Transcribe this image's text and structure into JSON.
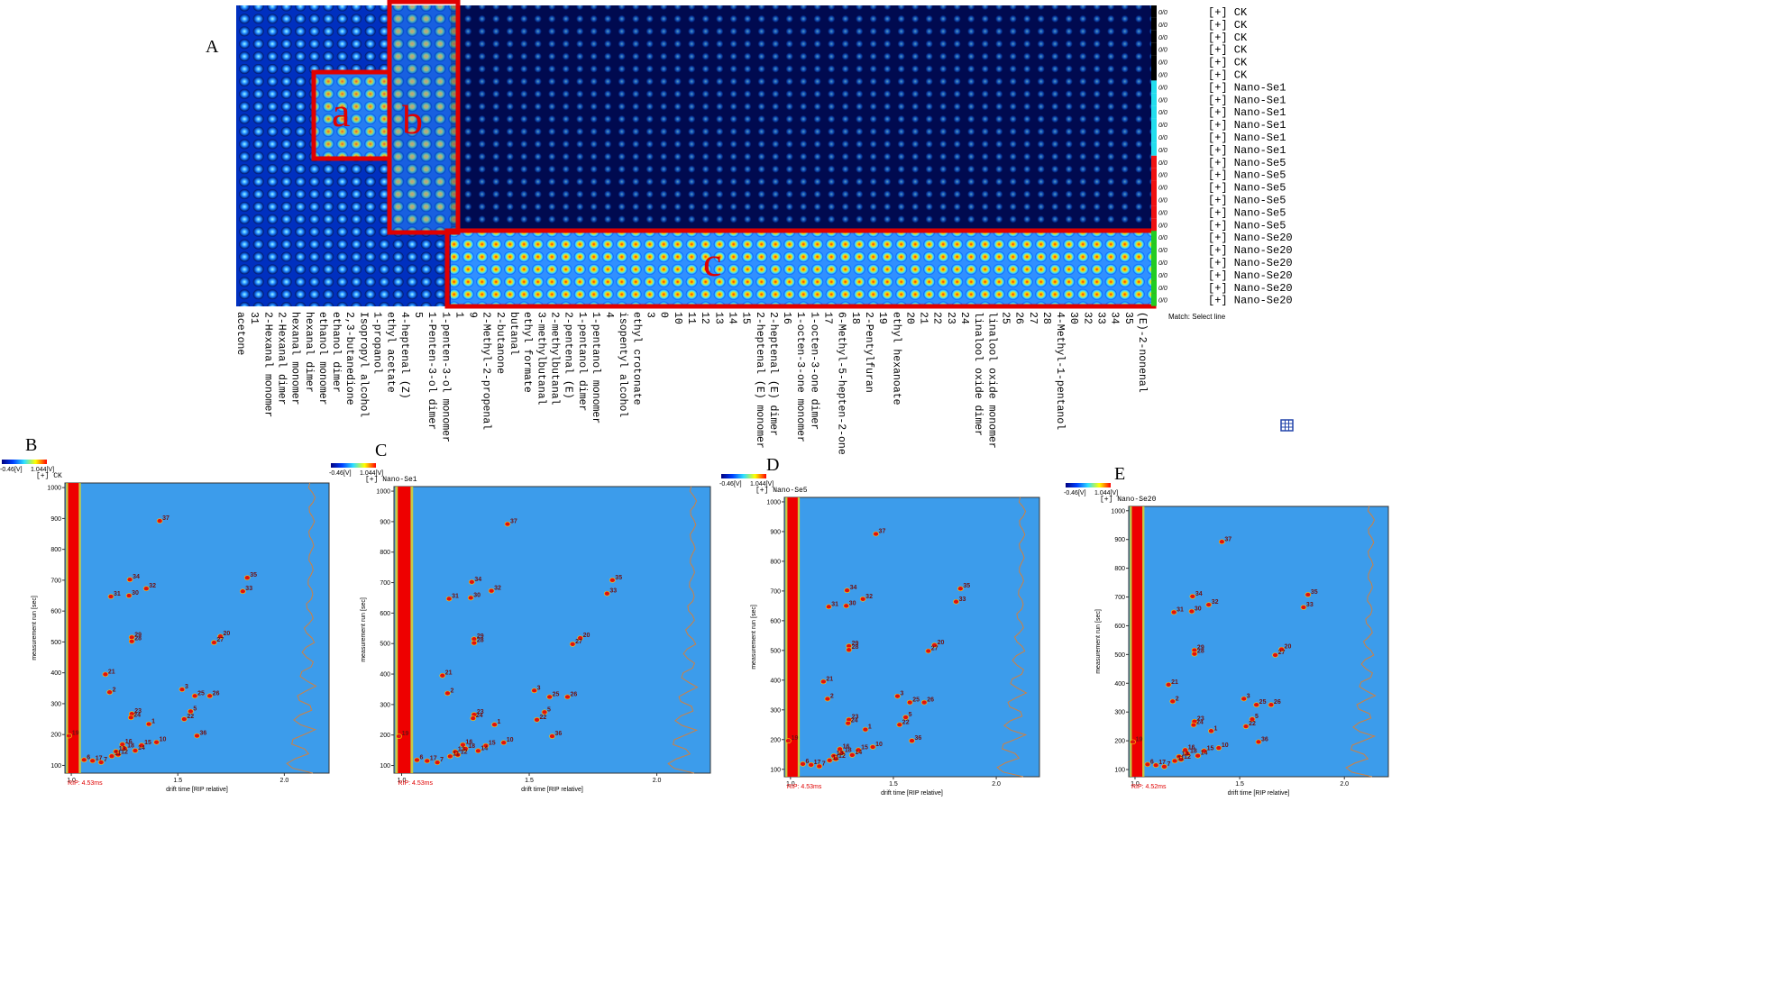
{
  "panel_A": {
    "label": "A",
    "region_labels": [
      "a",
      "b",
      "c"
    ],
    "compounds": [
      "acetone",
      "31",
      "2-Hexanal monomer",
      "2-Hexanal dimer",
      "hexanal monomer",
      "hexanal dimer",
      "ethanol monomer",
      "ethanol dimer",
      "2,3-butanedione",
      "Isopropyl alcohol",
      "1-propanol",
      "ethyl acetate",
      "4-heptenal (Z)",
      "5",
      "1-Penten-3-ol dimer",
      "1-penten-3-ol monomer",
      "1",
      "9",
      "2-Methyl-2-propenal",
      "2-butanone",
      "butanal",
      "ethyl formate",
      "3-methylbutanal",
      "2-methylbutanal",
      "2-pentenal (E)",
      "1-pentanol dimer",
      "1-pentanol monomer",
      "4",
      "isopentyl alcohol",
      "ethyl crotonate",
      "3",
      "0",
      "10",
      "11",
      "12",
      "13",
      "14",
      "15",
      "2-heptenal (E) monomer",
      "2-heptenal (E) dimer",
      "16",
      "1-octen-3-one monomer",
      "1-octen-3-one dimer",
      "17",
      "6-Methyl-5-hepten-2-one",
      "18",
      "2-Pentylfuran",
      "19",
      "ethyl hexanoate",
      "20",
      "21",
      "22",
      "23",
      "24",
      "linalool oxide dimer",
      "linalool oxide monomer",
      "25",
      "26",
      "27",
      "28",
      "4-Methyl-1-pentanol",
      "30",
      "32",
      "33",
      "34",
      "35",
      "(E)-2-nonenal"
    ],
    "sample_groups": [
      {
        "name": "[+] CK",
        "color": "#000000",
        "count": 6
      },
      {
        "name": "[+] Nano-Se1",
        "color": "#22ddee",
        "count": 6
      },
      {
        "name": "[+] Nano-Se5",
        "color": "#ee1111",
        "count": 6
      },
      {
        "name": "[+] Nano-Se20",
        "color": "#22cc22",
        "count": 6
      }
    ],
    "row_value_label": "0/0",
    "match_text": "Match: Select line"
  },
  "topo_axes": {
    "xlabel": "drift time [RIP relative]",
    "ylabel": "measurement run [sec]",
    "xlim": [
      0.97,
      2.21
    ],
    "ylim": [
      75,
      1015
    ],
    "xticks": [
      {
        "value": 1,
        "label": "1.0"
      },
      {
        "value": 1.5,
        "label": "1.5"
      },
      {
        "value": 2,
        "label": "2.0"
      }
    ],
    "yticks": [
      100,
      200,
      300,
      400,
      500,
      600,
      700,
      800,
      900,
      1000
    ],
    "colorbar_labels": [
      "-0.46[V]",
      "1.044[V]"
    ]
  },
  "plots": [
    {
      "label": "B",
      "sample": "[+] CK",
      "rip": "RIP: 4.53ms"
    },
    {
      "label": "C",
      "sample": "[+] Nano-Se1",
      "rip": "RIP: 4.53ms"
    },
    {
      "label": "D",
      "sample": "[+] Nano-Se5",
      "rip": "RIP: 4.53ms"
    },
    {
      "label": "E",
      "sample": "[+] Nano-Se20",
      "rip": "RIP: 4.52ms"
    }
  ],
  "peaks": [
    {
      "label": "37",
      "x": 1.415,
      "y": 892
    },
    {
      "label": "34",
      "x": 1.275,
      "y": 702
    },
    {
      "label": "35",
      "x": 1.826,
      "y": 708
    },
    {
      "label": "31",
      "x": 1.186,
      "y": 647
    },
    {
      "label": "30",
      "x": 1.271,
      "y": 650
    },
    {
      "label": "32",
      "x": 1.352,
      "y": 673
    },
    {
      "label": "33",
      "x": 1.805,
      "y": 664
    },
    {
      "label": "29",
      "x": 1.284,
      "y": 515
    },
    {
      "label": "28",
      "x": 1.284,
      "y": 502
    },
    {
      "label": "20",
      "x": 1.7,
      "y": 518
    },
    {
      "label": "27",
      "x": 1.67,
      "y": 498
    },
    {
      "label": "21",
      "x": 1.16,
      "y": 395
    },
    {
      "label": "2",
      "x": 1.18,
      "y": 337
    },
    {
      "label": "3",
      "x": 1.52,
      "y": 346
    },
    {
      "label": "25",
      "x": 1.58,
      "y": 325
    },
    {
      "label": "26",
      "x": 1.65,
      "y": 325
    },
    {
      "label": "23",
      "x": 1.284,
      "y": 267
    },
    {
      "label": "24",
      "x": 1.28,
      "y": 255
    },
    {
      "label": "1",
      "x": 1.364,
      "y": 234
    },
    {
      "label": "5",
      "x": 1.56,
      "y": 275
    },
    {
      "label": "22",
      "x": 1.53,
      "y": 250
    },
    {
      "label": "19",
      "x": 0.99,
      "y": 196
    },
    {
      "label": "36",
      "x": 1.59,
      "y": 196
    },
    {
      "label": "16",
      "x": 1.24,
      "y": 168
    },
    {
      "label": "15",
      "x": 1.33,
      "y": 165
    },
    {
      "label": "10",
      "x": 1.4,
      "y": 175
    },
    {
      "label": "18",
      "x": 1.25,
      "y": 155
    },
    {
      "label": "14",
      "x": 1.3,
      "y": 148
    },
    {
      "label": "13",
      "x": 1.21,
      "y": 145
    },
    {
      "label": "12",
      "x": 1.22,
      "y": 135
    },
    {
      "label": "11",
      "x": 1.19,
      "y": 130
    },
    {
      "label": "17",
      "x": 1.1,
      "y": 115
    },
    {
      "label": "6",
      "x": 1.06,
      "y": 118
    },
    {
      "label": "7",
      "x": 1.14,
      "y": 110
    }
  ]
}
